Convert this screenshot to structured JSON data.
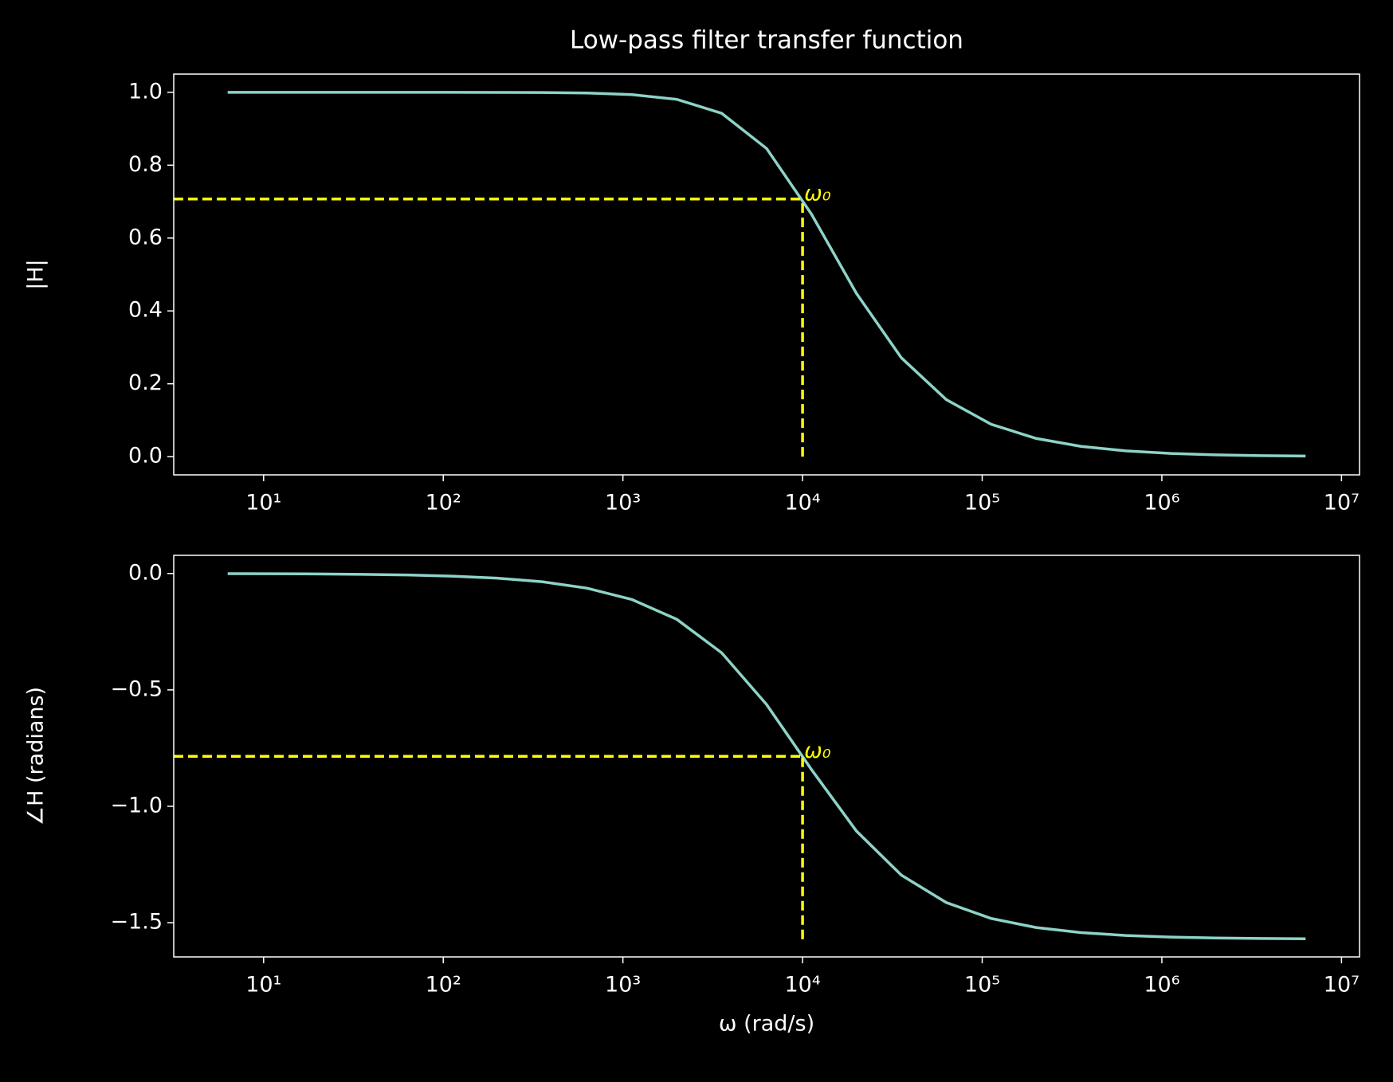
{
  "chart_data": [
    {
      "type": "line",
      "title": "Low-pass filter transfer function",
      "ylabel": "|H|",
      "log_x": true,
      "x": [
        6.31,
        11.22,
        19.95,
        35.48,
        63.1,
        112.2,
        199.5,
        354.8,
        631,
        1122,
        1995,
        3548,
        6310,
        11220,
        19950,
        35480,
        63100,
        112200,
        199500,
        354800,
        631000,
        1122000,
        1995000,
        3548000,
        6310000
      ],
      "series": [
        {
          "name": "|H|",
          "color": "#8dd3c7",
          "values": [
            1.0,
            1.0,
            1.0,
            0.99999,
            0.99998,
            0.99994,
            0.9998,
            0.99937,
            0.998,
            0.99377,
            0.9807,
            0.9424,
            0.8457,
            0.6653,
            0.4481,
            0.2713,
            0.1565,
            0.0888,
            0.05,
            0.0282,
            0.0158,
            0.0089,
            0.005,
            0.0028,
            0.0016
          ]
        }
      ],
      "ref_x": 10000,
      "ref_y": 0.7071,
      "ref_ymin": 0,
      "ref_color": "#ffff00",
      "annotation": "ω₀",
      "xlim": [
        3.16,
        12600000
      ],
      "xticks": [
        {
          "value": 10,
          "label": "10¹"
        },
        {
          "value": 100,
          "label": "10²"
        },
        {
          "value": 1000,
          "label": "10³"
        },
        {
          "value": 10000,
          "label": "10⁴"
        },
        {
          "value": 100000,
          "label": "10⁵"
        },
        {
          "value": 1000000,
          "label": "10⁶"
        },
        {
          "value": 10000000,
          "label": "10⁷"
        }
      ],
      "ylim": [
        -0.05,
        1.05
      ],
      "yticks": [
        {
          "value": 0,
          "label": "0.0"
        },
        0.2,
        0.4,
        0.6,
        0.8,
        {
          "value": 1,
          "label": "1.0"
        }
      ]
    },
    {
      "type": "line",
      "ylabel": "∠H (radians)",
      "xlabel": "ω (rad/s)",
      "log_x": true,
      "x": [
        6.31,
        11.22,
        19.95,
        35.48,
        63.1,
        112.2,
        199.5,
        354.8,
        631,
        1122,
        1995,
        3548,
        6310,
        11220,
        19950,
        35480,
        63100,
        112200,
        199500,
        354800,
        631000,
        1122000,
        1995000,
        3548000,
        6310000
      ],
      "series": [
        {
          "name": "∠H",
          "color": "#8dd3c7",
          "values": [
            -0.00063,
            -0.00112,
            -0.002,
            -0.00355,
            -0.0063,
            -0.01122,
            -0.01995,
            -0.03547,
            -0.063,
            -0.1117,
            -0.1969,
            -0.3409,
            -0.563,
            -0.8425,
            -1.1064,
            -1.2957,
            -1.4135,
            -1.4819,
            -1.5207,
            -1.5426,
            -1.5549,
            -1.5619,
            -1.5658,
            -1.568,
            -1.5692
          ]
        }
      ],
      "ref_x": 10000,
      "ref_y": -0.7854,
      "ref_ymin": -1.5708,
      "ref_color": "#ffff00",
      "annotation": "ω₀",
      "xlim": [
        3.16,
        12600000
      ],
      "xticks": [
        {
          "value": 10,
          "label": "10¹"
        },
        {
          "value": 100,
          "label": "10²"
        },
        {
          "value": 1000,
          "label": "10³"
        },
        {
          "value": 10000,
          "label": "10⁴"
        },
        {
          "value": 100000,
          "label": "10⁵"
        },
        {
          "value": 1000000,
          "label": "10⁶"
        },
        {
          "value": 10000000,
          "label": "10⁷"
        }
      ],
      "ylim": [
        -1.647,
        0.078
      ],
      "yticks": [
        {
          "value": -1.5,
          "label": "−1.5"
        },
        {
          "value": -1,
          "label": "−1.0"
        },
        {
          "value": -0.5,
          "label": "−0.5"
        },
        {
          "value": 0,
          "label": "0.0"
        }
      ]
    }
  ]
}
